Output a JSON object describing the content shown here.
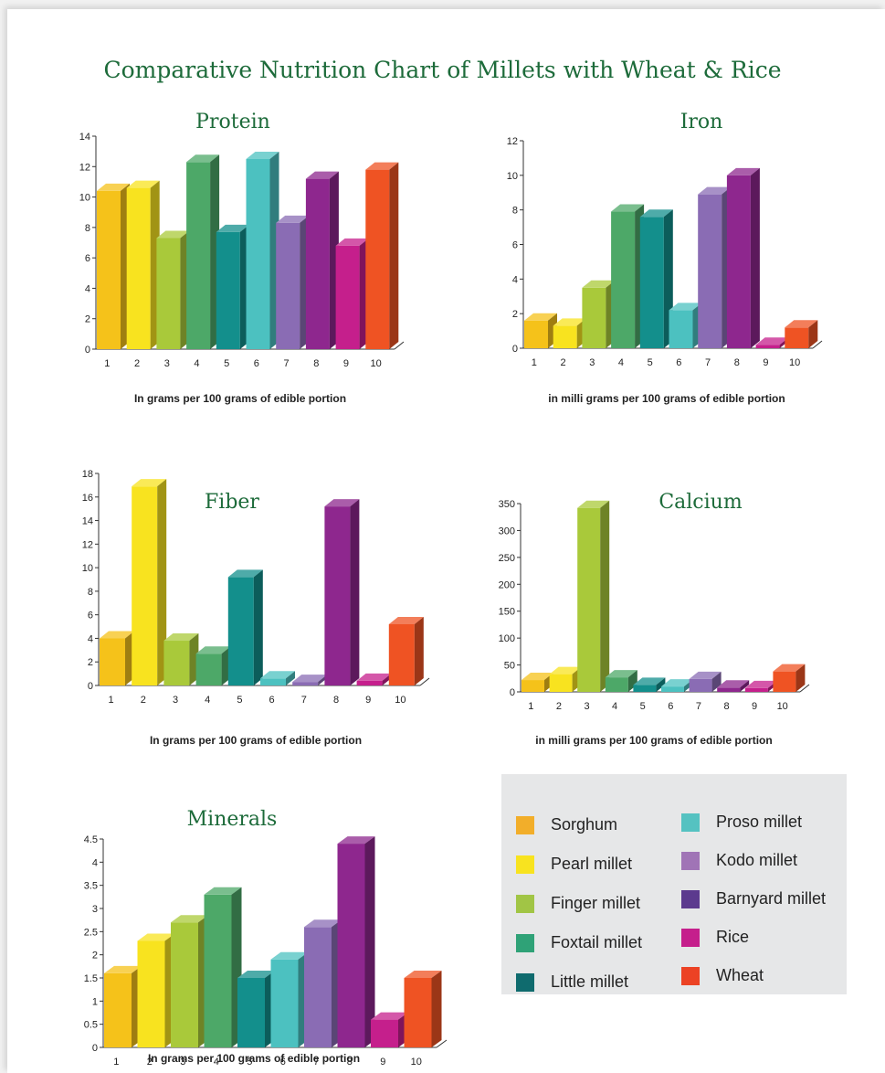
{
  "title": "Comparative Nutrition Chart of Millets with Wheat & Rice",
  "colors": {
    "title": "#1d6b3a",
    "bars": [
      "#f5c21a",
      "#f8e31f",
      "#a9c93a",
      "#4da868",
      "#138f8c",
      "#4cc1c0",
      "#8a6cb4",
      "#8e278e",
      "#c51f8c",
      "#ef5323"
    ]
  },
  "legend": {
    "items": [
      {
        "label": "Sorghum",
        "color": "#f2ae2a"
      },
      {
        "label": "Pearl millet",
        "color": "#f8e31f"
      },
      {
        "label": "Finger millet",
        "color": "#a1c545"
      },
      {
        "label": "Foxtail millet",
        "color": "#2fa277"
      },
      {
        "label": "Little millet",
        "color": "#0f6b6e"
      },
      {
        "label": "Proso millet",
        "color": "#55c2c1"
      },
      {
        "label": "Kodo millet",
        "color": "#a074b6"
      },
      {
        "label": "Barnyard millet",
        "color": "#5c3a8e"
      },
      {
        "label": "Rice",
        "color": "#c51f8c"
      },
      {
        "label": "Wheat",
        "color": "#ec4224"
      }
    ]
  },
  "chart_data": [
    {
      "type": "bar",
      "title": "Protein",
      "categories": [
        "1",
        "2",
        "3",
        "4",
        "5",
        "6",
        "7",
        "8",
        "9",
        "10"
      ],
      "values": [
        10.4,
        10.6,
        7.3,
        12.3,
        7.7,
        12.5,
        8.3,
        11.2,
        6.8,
        11.8
      ],
      "ylim": [
        0,
        14
      ],
      "yticks": [
        "0",
        "2",
        "4",
        "6",
        "8",
        "10",
        "12",
        "14"
      ],
      "ytick_values": [
        0,
        2,
        4,
        6,
        8,
        10,
        12,
        14
      ],
      "xlabel": "In grams per 100 grams of edible portion"
    },
    {
      "type": "bar",
      "title": "Iron",
      "categories": [
        "1",
        "2",
        "3",
        "4",
        "5",
        "6",
        "7",
        "8",
        "9",
        "10"
      ],
      "values": [
        1.6,
        1.3,
        3.5,
        7.9,
        7.6,
        2.2,
        8.9,
        10.0,
        0.2,
        1.2
      ],
      "ylim": [
        0,
        12
      ],
      "yticks": [
        "0",
        "2",
        "4",
        "6",
        "8",
        "10",
        "12"
      ],
      "ytick_values": [
        0,
        2,
        4,
        6,
        8,
        10,
        12
      ],
      "xlabel": "in milli grams per 100 grams of edible portion"
    },
    {
      "type": "bar",
      "title": "Fiber",
      "categories": [
        "1",
        "2",
        "3",
        "4",
        "5",
        "6",
        "7",
        "8",
        "9",
        "10"
      ],
      "values": [
        4.0,
        16.9,
        3.8,
        2.7,
        9.2,
        0.6,
        0.3,
        15.2,
        0.4,
        5.2
      ],
      "ylim": [
        0,
        18
      ],
      "yticks": [
        "0",
        "2",
        "4",
        "6",
        "8",
        "10",
        "12",
        "14",
        "16",
        "18"
      ],
      "ytick_values": [
        0,
        2,
        4,
        6,
        8,
        10,
        12,
        14,
        16,
        18
      ],
      "xlabel": "In grams per 100 grams of edible portion"
    },
    {
      "type": "bar",
      "title": "Calcium",
      "categories": [
        "1",
        "2",
        "3",
        "4",
        "5",
        "6",
        "7",
        "8",
        "9",
        "10"
      ],
      "values": [
        22,
        33,
        342,
        27,
        13,
        10,
        24,
        8,
        7,
        38
      ],
      "ylim": [
        0,
        350
      ],
      "yticks": [
        "0",
        "50",
        "100",
        "150",
        "200",
        "250",
        "300",
        "350"
      ],
      "ytick_values": [
        0,
        50,
        100,
        150,
        200,
        250,
        300,
        350
      ],
      "xlabel": "in milli grams per 100 grams of edible portion"
    },
    {
      "type": "bar",
      "title": "Minerals",
      "categories": [
        "1",
        "2",
        "3",
        "4",
        "5",
        "6",
        "7",
        "8",
        "9",
        "10"
      ],
      "values": [
        1.6,
        2.3,
        2.7,
        3.3,
        1.5,
        1.9,
        2.6,
        4.4,
        0.6,
        1.5
      ],
      "ylim": [
        0,
        4.5
      ],
      "yticks": [
        "0",
        "0.5",
        "1",
        "1.5",
        "2",
        "2.5",
        "3",
        "3.5",
        "4",
        "4.5"
      ],
      "ytick_values": [
        0,
        0.5,
        1,
        1.5,
        2,
        2.5,
        3,
        3.5,
        4,
        4.5
      ],
      "xlabel": "In grams per 100 grams of edible portion"
    }
  ]
}
